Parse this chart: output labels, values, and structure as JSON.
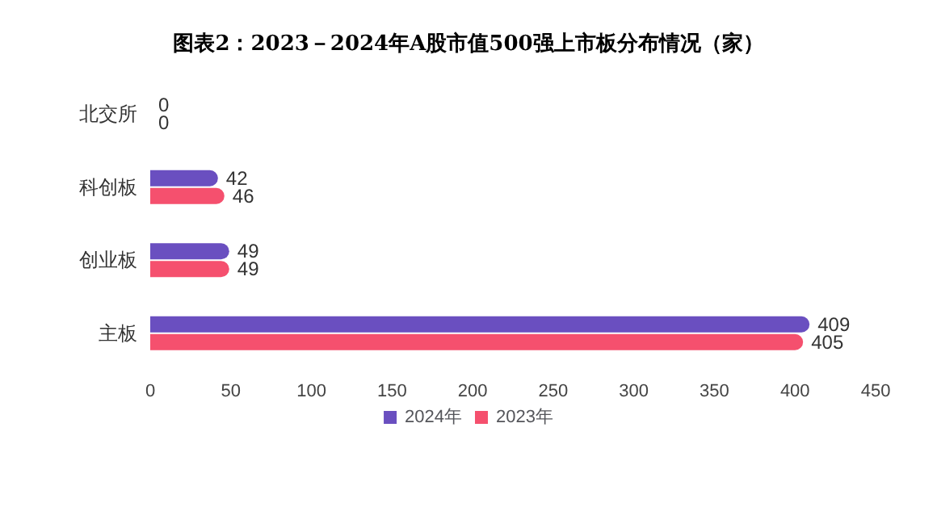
{
  "chart_data": {
    "type": "bar",
    "orientation": "horizontal",
    "title": "图表2：2023－2024年A股市值500强上市板分布情况（家）",
    "categories": [
      "北交所",
      "科创板",
      "创业板",
      "主板"
    ],
    "series": [
      {
        "name": "2024年",
        "color": "#6a4fc0",
        "values": [
          0,
          42,
          49,
          409
        ]
      },
      {
        "name": "2023年",
        "color": "#f5506e",
        "values": [
          0,
          46,
          49,
          405
        ]
      }
    ],
    "xlim": [
      0,
      450
    ],
    "xticks": [
      0,
      50,
      100,
      150,
      200,
      250,
      300,
      350,
      400,
      450
    ],
    "grid": false,
    "legend": "bottom",
    "data_labels": true
  }
}
